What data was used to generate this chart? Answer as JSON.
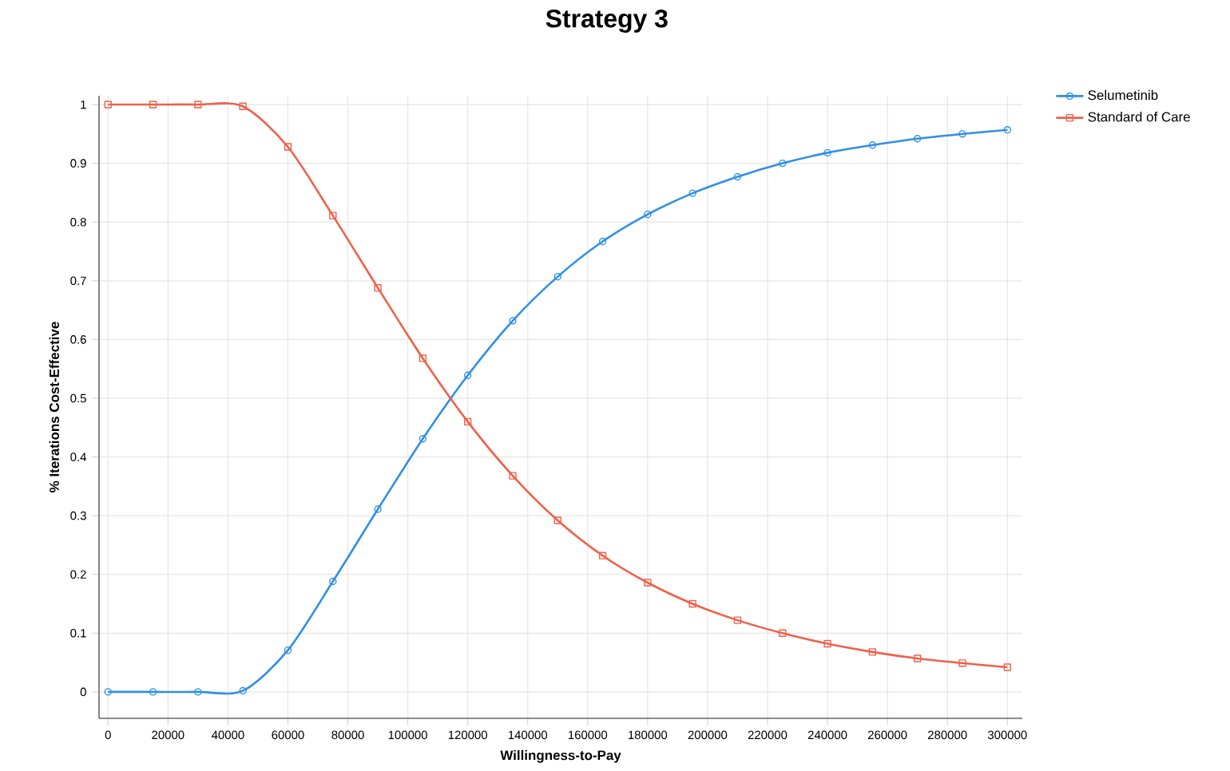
{
  "chart_data": {
    "type": "line",
    "title": "Strategy 3",
    "xlabel": "Willingness-to-Pay",
    "ylabel": "% Iterations Cost-Effective",
    "x": [
      0,
      15000,
      30000,
      45000,
      60000,
      75000,
      90000,
      105000,
      120000,
      135000,
      150000,
      165000,
      180000,
      195000,
      210000,
      225000,
      240000,
      255000,
      270000,
      285000,
      300000
    ],
    "series": [
      {
        "name": "Selumetinib",
        "color": "#2f8fe6",
        "marker": "circle",
        "values": [
          0,
          0,
          0,
          0.002,
          0.071,
          0.188,
          0.311,
          0.431,
          0.539,
          0.632,
          0.707,
          0.767,
          0.813,
          0.849,
          0.877,
          0.9,
          0.918,
          0.931,
          0.942,
          0.95,
          0.957
        ]
      },
      {
        "name": "Standard of Care",
        "color": "#f0604a",
        "marker": "square",
        "values": [
          1,
          1,
          1,
          0.997,
          0.928,
          0.811,
          0.688,
          0.568,
          0.46,
          0.368,
          0.292,
          0.232,
          0.186,
          0.15,
          0.122,
          0.1,
          0.082,
          0.068,
          0.057,
          0.049,
          0.042
        ]
      }
    ],
    "xlim": [
      -3000,
      305000
    ],
    "ylim": [
      -0.045,
      1.015
    ],
    "xticks": [
      0,
      20000,
      40000,
      60000,
      80000,
      100000,
      120000,
      140000,
      160000,
      180000,
      200000,
      220000,
      240000,
      260000,
      280000,
      300000
    ],
    "yticks": [
      0,
      0.1,
      0.2,
      0.3,
      0.4,
      0.5,
      0.6,
      0.7,
      0.8,
      0.9,
      1
    ],
    "grid": true,
    "legend": "top right"
  }
}
